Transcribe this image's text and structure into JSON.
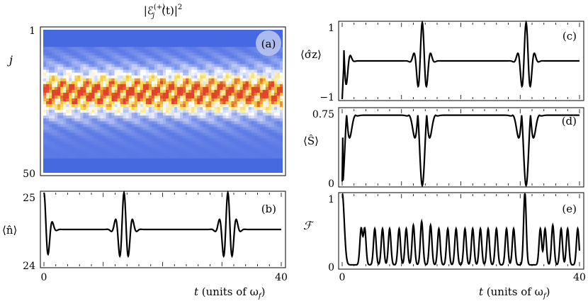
{
  "chart_data": [
    {
      "panel": "a",
      "type": "heatmap",
      "title": "|ℰ",
      "title_sup": "(+)",
      "title_sub": "j",
      "title_tail": "(t)|",
      "title_pow": "2",
      "ylabel": "j",
      "y_ticks": [
        "1",
        "50"
      ],
      "label": "(a)",
      "colors": {
        "low": "#3a5fe0",
        "mid": "#ffffff",
        "high": "#e0452c"
      }
    },
    {
      "panel": "b",
      "type": "line",
      "ylabel": "⟨n̂⟩",
      "ylim": [
        24,
        25
      ],
      "y_ticks": [
        "25",
        "24"
      ],
      "x_ticks": [
        "0",
        "40"
      ],
      "xlim": [
        0,
        40
      ],
      "xlabel": "t (units of ω_f)",
      "xlabel_t": "t",
      "xlabel_rest": " (units of ω",
      "xlabel_sub": "f",
      "xlabel_close": ")",
      "label": "(b)",
      "baseline": 24.5,
      "bursts_at": [
        0,
        13.5,
        31.0
      ]
    },
    {
      "panel": "c",
      "type": "line",
      "ylabel": "⟨σ̂z⟩",
      "ylim": [
        -1,
        1
      ],
      "y_ticks": [
        "1",
        "−1"
      ],
      "label": "(c)",
      "baseline": 0.0,
      "bursts_at": [
        0,
        13.5,
        31.0
      ]
    },
    {
      "panel": "d",
      "type": "line",
      "ylabel": "⟨Ŝ⟩",
      "ylim": [
        0,
        0.75
      ],
      "y_ticks": [
        "0.75",
        "0"
      ],
      "label": "(d)",
      "baseline": 0.69,
      "bursts_at": [
        0,
        13.5,
        31.0
      ]
    },
    {
      "panel": "e",
      "type": "line",
      "ylabel": "ℱ",
      "ylim": [
        0,
        1
      ],
      "y_ticks": [
        "1",
        "0"
      ],
      "x_ticks": [
        "0",
        "40"
      ],
      "xlim": [
        0,
        40
      ],
      "xlabel_t": "t",
      "xlabel_rest": " (units of ω",
      "xlabel_sub": "f",
      "xlabel_close": ")",
      "label": "(e)",
      "peaks_at": [
        0,
        3.2,
        3.8,
        5.5,
        6.8,
        8.0,
        9.6,
        10.8,
        12.0,
        13.4,
        14.9,
        16.3,
        17.8,
        19.2,
        20.7,
        22.0,
        23.3,
        24.6,
        26.0,
        27.7,
        28.9,
        30.8,
        33.4,
        34.2,
        35.5,
        36.9,
        38.0,
        39.7
      ],
      "peak_values": [
        1.0,
        0.5,
        0.5,
        0.5,
        0.5,
        0.5,
        0.5,
        0.5,
        0.55,
        0.6,
        0.55,
        0.5,
        0.5,
        0.5,
        0.5,
        0.5,
        0.5,
        0.5,
        0.5,
        0.5,
        0.5,
        1.0,
        0.5,
        0.5,
        0.55,
        0.5,
        0.5,
        0.5
      ]
    }
  ]
}
